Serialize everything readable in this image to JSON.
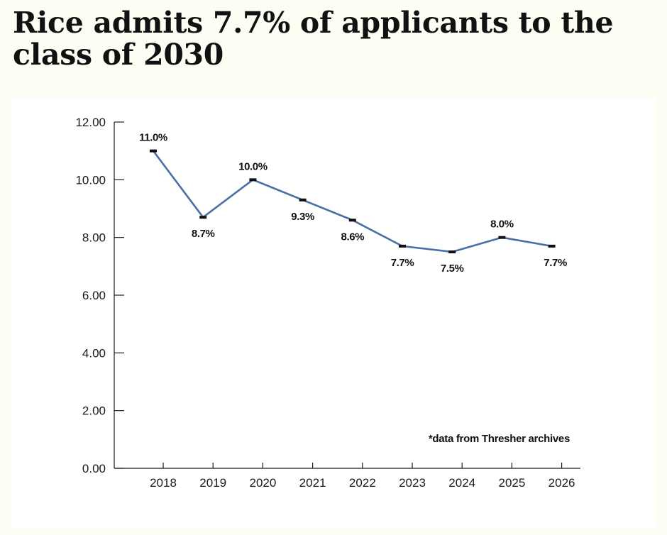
{
  "headline": "Rice admits 7.7% of applicants to the class of 2030",
  "chart_data": {
    "type": "line",
    "title": "",
    "xlabel": "",
    "ylabel": "",
    "categories": [
      "2018",
      "2019",
      "2020",
      "2021",
      "2022",
      "2023",
      "2024",
      "2025",
      "2026"
    ],
    "series": [
      {
        "values": [
          11.0,
          8.7,
          10.0,
          9.3,
          8.6,
          7.7,
          7.5,
          8.0,
          7.7
        ],
        "labels": [
          "11.0%",
          "8.7%",
          "10.0%",
          "9.3%",
          "8.6%",
          "7.7%",
          "7.5%",
          "8.0%",
          "7.7%"
        ],
        "color": "#4a6fa5"
      }
    ],
    "ylim": [
      0,
      12
    ],
    "yticks": [
      "0.00",
      "2.00",
      "4.00",
      "6.00",
      "8.00",
      "10.00",
      "12.00"
    ],
    "grid": false,
    "legend": "none",
    "annotation": "*data from Thresher archives"
  }
}
